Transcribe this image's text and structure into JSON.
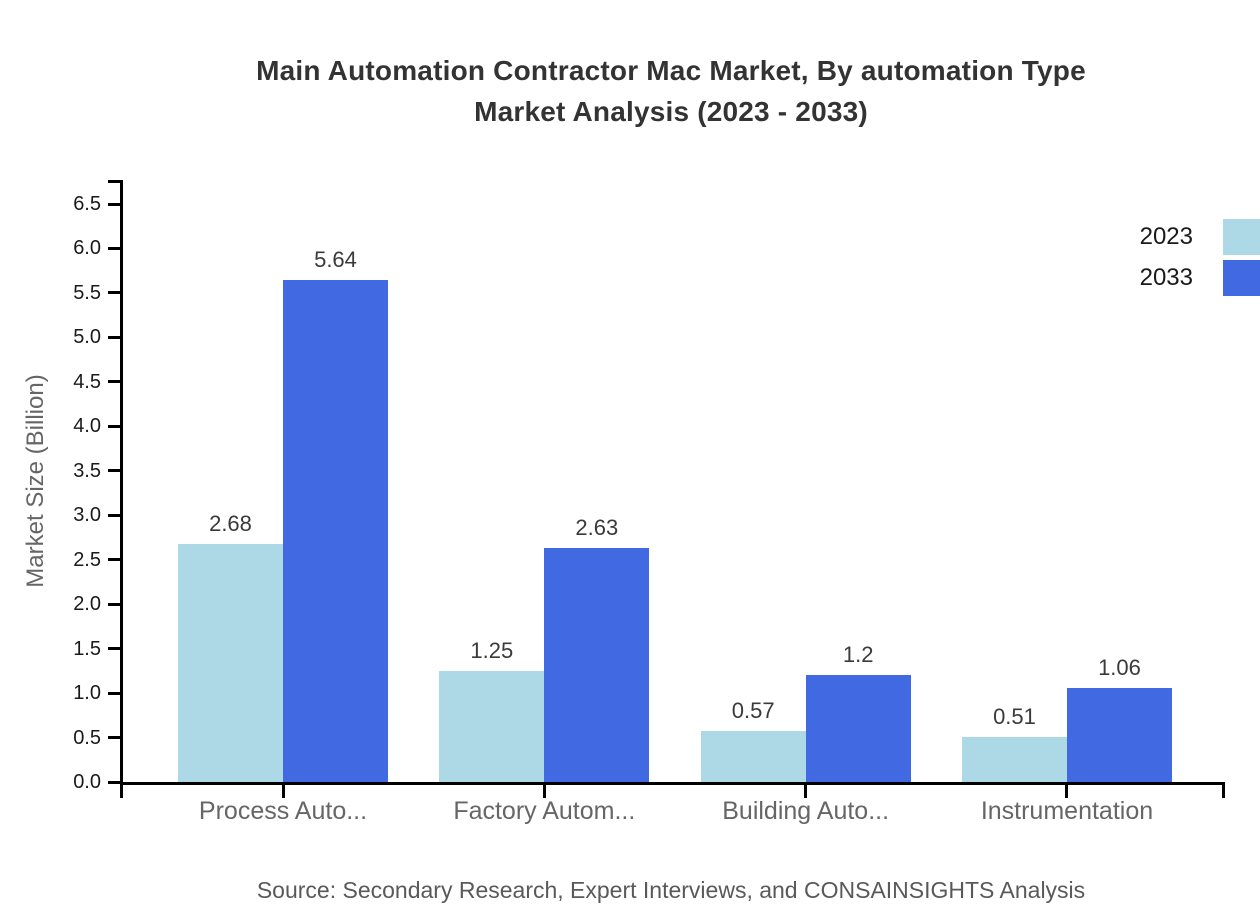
{
  "title": {
    "line1": "Main Automation Contractor Mac Market, By automation Type",
    "line2": "Market Analysis (2023 - 2033)"
  },
  "source_note": "Source: Secondary Research, Expert Interviews, and CONSAINSIGHTS Analysis",
  "legend": {
    "position": "top-right",
    "items": [
      {
        "label": "2023",
        "color": "#ADD8E6"
      },
      {
        "label": "2033",
        "color": "#4169E1"
      }
    ]
  },
  "chart_data": {
    "type": "bar",
    "title": "Main Automation Contractor Mac Market, By automation Type Market Analysis (2023 - 2033)",
    "categories": [
      "Process Auto...",
      "Factory Autom...",
      "Building Auto...",
      "Instrumentation"
    ],
    "series": [
      {
        "name": "2023",
        "color": "#ADD8E6",
        "values": [
          2.68,
          1.25,
          0.57,
          0.51
        ],
        "value_labels": [
          "2.68",
          "1.25",
          "0.57",
          "0.51"
        ]
      },
      {
        "name": "2033",
        "color": "#4169E1",
        "values": [
          5.64,
          2.63,
          1.2,
          1.06
        ],
        "value_labels": [
          "5.64",
          "2.63",
          "1.2",
          "1.06"
        ]
      }
    ],
    "xlabel": "",
    "ylabel": "Market Size (Billion)",
    "ylim": [
      0,
      6.5
    ],
    "ytick_labels": [
      "0.0",
      "0.5",
      "1.0",
      "1.5",
      "2.0",
      "2.5",
      "3.0",
      "3.5",
      "4.0",
      "4.5",
      "5.0",
      "5.5",
      "6.0",
      "6.5"
    ],
    "grid": false,
    "legend_position": "top-right",
    "bar_value_labels_shown": true
  }
}
